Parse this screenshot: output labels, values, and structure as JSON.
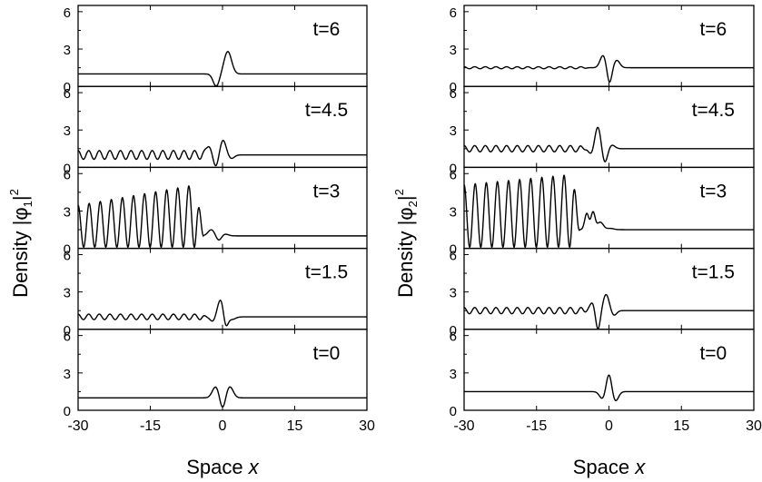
{
  "chart_data": [
    {
      "type": "line",
      "id": "phi1",
      "xlabel_prefix": "Space ",
      "xlabel_var": "x",
      "ylabel_prefix": "Density |φ",
      "ylabel_sub": "1",
      "ylabel_suffix": "|",
      "ylabel_sup": "2",
      "xlim": [
        -30,
        30
      ],
      "xticks": [
        "-30",
        "-15",
        "0",
        "15",
        "30"
      ],
      "ylim": [
        0,
        6.5
      ],
      "yticks": [
        "0",
        "3",
        "6"
      ],
      "panels": [
        {
          "label": "t=6",
          "baseline": 1.0,
          "bumps": [
            {
              "x": -1.3,
              "a": -1.0,
              "w": 0.9
            },
            {
              "x": 1.1,
              "a": 1.8,
              "w": 1.1
            }
          ],
          "ripple": null
        },
        {
          "label": "t=4.5",
          "baseline": 1.0,
          "bumps": [
            {
              "x": -2.8,
              "a": 0.7,
              "w": 0.9
            },
            {
              "x": -1.4,
              "a": -1.0,
              "w": 0.8
            },
            {
              "x": 0.1,
              "a": 1.2,
              "w": 0.9
            },
            {
              "x": 1.8,
              "a": -0.3,
              "w": 0.9
            }
          ],
          "ripple": {
            "x_from": -30,
            "x_to": -3,
            "amp": 0.35,
            "period": 2.2,
            "grow": 0
          }
        },
        {
          "label": "t=3",
          "baseline": 1.0,
          "bumps": [
            {
              "x": -2.3,
              "a": 0.5,
              "w": 1.0
            },
            {
              "x": -0.8,
              "a": -0.4,
              "w": 0.8
            },
            {
              "x": 0.5,
              "a": 0.15,
              "w": 1.0
            }
          ],
          "ripple": {
            "x_from": -30,
            "x_to": -4,
            "amp": 1.35,
            "period": 2.3,
            "grow": 1.3,
            "osc_base": 2.0
          }
        },
        {
          "label": "t=1.5",
          "baseline": 1.0,
          "bumps": [
            {
              "x": -2.0,
              "a": -0.4,
              "w": 0.8
            },
            {
              "x": -0.3,
              "a": 1.5,
              "w": 1.0
            },
            {
              "x": 0.6,
              "a": -1.2,
              "w": 0.7
            },
            {
              "x": 2.0,
              "a": -0.2,
              "w": 1.0
            }
          ],
          "ripple": {
            "x_from": -30,
            "x_to": -3,
            "amp": 0.22,
            "period": 2.2,
            "grow": 0
          }
        },
        {
          "label": "t=0",
          "baseline": 1.0,
          "bumps": [
            {
              "x": -1.4,
              "a": 0.9,
              "w": 1.0
            },
            {
              "x": 0.0,
              "a": -0.95,
              "w": 0.8
            },
            {
              "x": 1.5,
              "a": 0.9,
              "w": 1.0
            }
          ],
          "ripple": null
        }
      ]
    },
    {
      "type": "line",
      "id": "phi2",
      "xlabel_prefix": "Space ",
      "xlabel_var": "x",
      "ylabel_prefix": "Density |φ",
      "ylabel_sub": "2",
      "ylabel_suffix": "|",
      "ylabel_sup": "2",
      "xlim": [
        -30,
        30
      ],
      "xticks": [
        "-30",
        "-15",
        "0",
        "15",
        "30"
      ],
      "ylim": [
        0,
        6.5
      ],
      "yticks": [
        "0",
        "3",
        "6"
      ],
      "panels": [
        {
          "label": "t=6",
          "baseline": 1.5,
          "bumps": [
            {
              "x": -1.2,
              "a": 1.0,
              "w": 0.9
            },
            {
              "x": 0.1,
              "a": -1.3,
              "w": 0.7
            },
            {
              "x": 1.6,
              "a": 0.6,
              "w": 0.9
            }
          ],
          "ripple": {
            "x_from": -30,
            "x_to": -4,
            "amp": 0.08,
            "period": 2.2,
            "grow": 0
          }
        },
        {
          "label": "t=4.5",
          "baseline": 1.5,
          "bumps": [
            {
              "x": -3.6,
              "a": -0.5,
              "w": 0.8
            },
            {
              "x": -2.3,
              "a": 1.8,
              "w": 0.9
            },
            {
              "x": -0.9,
              "a": -1.2,
              "w": 0.8
            },
            {
              "x": 0.6,
              "a": 0.3,
              "w": 0.9
            }
          ],
          "ripple": {
            "x_from": -30,
            "x_to": -4.5,
            "amp": 0.25,
            "period": 2.2,
            "grow": 0
          }
        },
        {
          "label": "t=3",
          "baseline": 1.5,
          "bumps": [
            {
              "x": -4.6,
              "a": 1.3,
              "w": 0.6
            },
            {
              "x": -3.3,
              "a": 1.4,
              "w": 0.6
            },
            {
              "x": -1.8,
              "a": 0.6,
              "w": 0.9
            },
            {
              "x": 0.3,
              "a": 0.1,
              "w": 1.0
            }
          ],
          "ripple": {
            "x_from": -30,
            "x_to": -6,
            "amp": 2.2,
            "period": 2.3,
            "grow": 0.4,
            "osc_base": 2.8
          }
        },
        {
          "label": "t=1.5",
          "baseline": 1.5,
          "bumps": [
            {
              "x": -3.4,
              "a": 0.7,
              "w": 0.8
            },
            {
              "x": -2.3,
              "a": -1.6,
              "w": 0.7
            },
            {
              "x": -0.6,
              "a": 1.3,
              "w": 0.9
            },
            {
              "x": 1.0,
              "a": -0.4,
              "w": 0.8
            }
          ],
          "ripple": {
            "x_from": -30,
            "x_to": -4,
            "amp": 0.25,
            "period": 2.2,
            "grow": 0
          }
        },
        {
          "label": "t=0",
          "baseline": 1.5,
          "bumps": [
            {
              "x": -1.3,
              "a": -0.6,
              "w": 0.9
            },
            {
              "x": 0.0,
              "a": 1.5,
              "w": 0.8
            },
            {
              "x": 1.3,
              "a": -0.8,
              "w": 0.9
            }
          ],
          "ripple": null
        }
      ]
    }
  ]
}
